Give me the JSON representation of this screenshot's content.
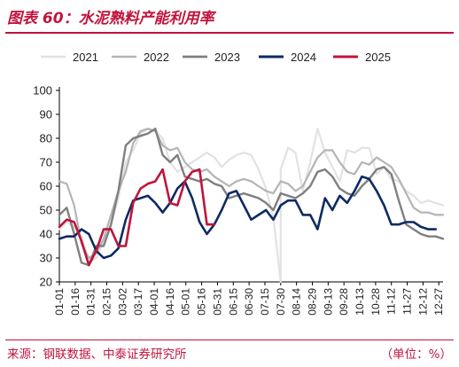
{
  "figure": {
    "title": "图表 60：水泥熟料产能利用率",
    "source": "来源：钢联数据、中泰证券研究所",
    "unit": "（单位：%）"
  },
  "colors": {
    "accent": "#c0143c",
    "s2021": "#e2e2e2",
    "s2022": "#b4b4b4",
    "s2023": "#7f7f7f",
    "s2024": "#0d2a63",
    "s2025": "#c0143c"
  },
  "chart_data": {
    "type": "line",
    "title": "",
    "xlabel": "",
    "ylabel": "",
    "ylim": [
      20,
      100
    ],
    "yticks": [
      20,
      30,
      40,
      50,
      60,
      70,
      80,
      90,
      100
    ],
    "xticks": [
      "01-01",
      "01-16",
      "01-31",
      "02-15",
      "03-02",
      "03-17",
      "04-01",
      "04-16",
      "05-01",
      "05-16",
      "05-31",
      "06-15",
      "06-30",
      "07-15",
      "07-30",
      "08-14",
      "08-29",
      "09-13",
      "09-28",
      "10-13",
      "10-28",
      "11-12",
      "11-27",
      "12-12",
      "12-27"
    ],
    "x_range_days": [
      1,
      365
    ],
    "legend_position": "top",
    "grid": false,
    "series": [
      {
        "name": "2021",
        "x": [
          1,
          8,
          15,
          22,
          29,
          36,
          43,
          50,
          57,
          64,
          71,
          78,
          85,
          92,
          99,
          106,
          113,
          120,
          127,
          134,
          141,
          148,
          155,
          162,
          169,
          176,
          183,
          190,
          197,
          204,
          211,
          211,
          218,
          225,
          232,
          239,
          246,
          253,
          260,
          267,
          274,
          281,
          288,
          295,
          302,
          309,
          316,
          323,
          330,
          337,
          344,
          351,
          358,
          365
        ],
        "values": [
          42,
          45,
          43,
          39,
          28,
          30,
          37,
          44,
          55,
          70,
          75,
          82,
          84,
          83,
          80,
          70,
          66,
          68,
          70,
          72,
          74,
          72,
          68,
          71,
          73,
          74,
          73,
          67,
          59,
          47,
          20,
          67,
          76,
          74,
          58,
          70,
          84,
          74,
          68,
          62,
          75,
          74,
          76,
          76,
          65,
          68,
          63,
          62,
          58,
          56,
          53,
          54,
          53,
          52
        ]
      },
      {
        "name": "2022",
        "x": [
          1,
          8,
          15,
          22,
          29,
          36,
          43,
          50,
          57,
          64,
          71,
          78,
          85,
          92,
          99,
          106,
          113,
          120,
          127,
          134,
          141,
          148,
          155,
          162,
          169,
          176,
          183,
          190,
          197,
          204,
          211,
          218,
          225,
          232,
          239,
          246,
          253,
          260,
          267,
          274,
          281,
          288,
          295,
          302,
          309,
          316,
          323,
          330,
          337,
          344,
          351,
          358,
          365
        ],
        "values": [
          62,
          61,
          52,
          36,
          30,
          32,
          38,
          48,
          58,
          66,
          78,
          83,
          84,
          83,
          77,
          75,
          76,
          70,
          67,
          66,
          67,
          64,
          62,
          60,
          62,
          63,
          62,
          60,
          58,
          57,
          62,
          61,
          58,
          60,
          66,
          72,
          75,
          75,
          70,
          66,
          65,
          70,
          69,
          72,
          70,
          68,
          63,
          57,
          51,
          49,
          49,
          48,
          48
        ]
      },
      {
        "name": "2023",
        "x": [
          1,
          8,
          15,
          22,
          29,
          36,
          43,
          50,
          57,
          64,
          71,
          78,
          85,
          92,
          99,
          106,
          113,
          120,
          127,
          134,
          141,
          148,
          155,
          162,
          169,
          176,
          183,
          190,
          197,
          204,
          211,
          218,
          225,
          232,
          239,
          246,
          253,
          260,
          267,
          274,
          281,
          288,
          295,
          302,
          309,
          316,
          323,
          330,
          337,
          344,
          351,
          358,
          365
        ],
        "values": [
          48,
          51,
          40,
          28,
          27,
          35,
          35,
          44,
          58,
          77,
          80,
          81,
          82,
          84,
          73,
          70,
          73,
          64,
          63,
          62,
          63,
          61,
          60,
          55,
          56,
          57,
          56,
          55,
          53,
          50,
          57,
          56,
          55,
          57,
          60,
          66,
          67,
          64,
          59,
          57,
          56,
          60,
          63,
          67,
          68,
          65,
          54,
          44,
          42,
          40,
          39,
          39,
          38
        ]
      },
      {
        "name": "2024",
        "x": [
          1,
          8,
          15,
          22,
          29,
          36,
          43,
          50,
          57,
          64,
          71,
          78,
          85,
          92,
          99,
          106,
          113,
          120,
          127,
          134,
          141,
          148,
          155,
          162,
          169,
          176,
          183,
          190,
          197,
          204,
          211,
          218,
          225,
          232,
          239,
          246,
          253,
          260,
          267,
          274,
          281,
          288,
          295,
          302,
          309,
          316,
          323,
          330,
          337,
          344,
          351,
          358
        ],
        "values": [
          38,
          39,
          39,
          42,
          40,
          33,
          30,
          31,
          34,
          46,
          54,
          55,
          56,
          53,
          49,
          53,
          59,
          62,
          55,
          45,
          40,
          44,
          50,
          57,
          58,
          52,
          46,
          48,
          50,
          46,
          52,
          54,
          54,
          48,
          48,
          42,
          55,
          50,
          56,
          53,
          58,
          64,
          63,
          58,
          52,
          44,
          44,
          45,
          45,
          43,
          42,
          42
        ]
      },
      {
        "name": "2025",
        "x": [
          1,
          8,
          15,
          22,
          29,
          36,
          43,
          50,
          57,
          64,
          71,
          78,
          85,
          92,
          99,
          106,
          113,
          120,
          127,
          134,
          141,
          148
        ],
        "values": [
          43,
          46,
          45,
          37,
          27,
          33,
          42,
          42,
          35,
          35,
          53,
          59,
          61,
          62,
          67,
          53,
          52,
          62,
          66,
          67,
          44,
          44
        ]
      }
    ]
  }
}
